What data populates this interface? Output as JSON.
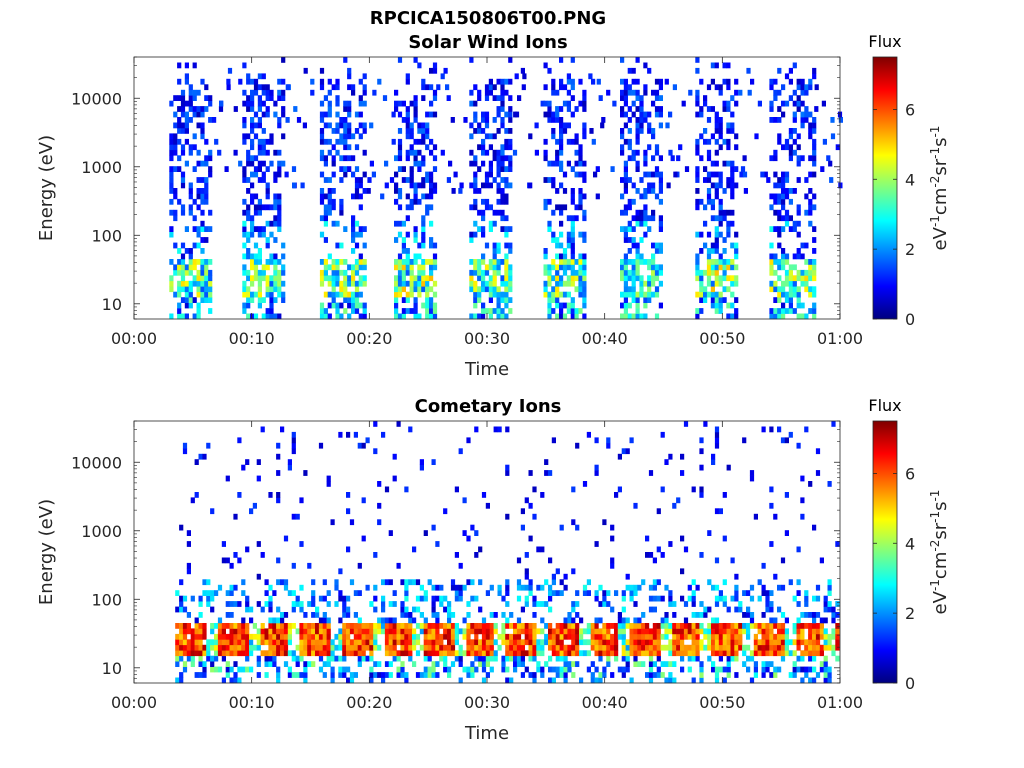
{
  "figure": {
    "title": "RPCICA150806T00.PNG"
  },
  "colorbar_colors": [
    "#00007f",
    "#0000ff",
    "#007fff",
    "#00ffff",
    "#7fff7f",
    "#ffff00",
    "#ff7f00",
    "#ff0000",
    "#7f0000"
  ],
  "chart_data": [
    {
      "type": "heatmap",
      "title": "Solar Wind Ions",
      "xlabel": "Time",
      "ylabel": "Energy (eV)",
      "x_ticks": [
        "00:00",
        "00:10",
        "00:20",
        "00:30",
        "00:40",
        "00:50",
        "01:00"
      ],
      "x_range_minutes": [
        0,
        60
      ],
      "y_scale": "log",
      "y_ticks": [
        "10",
        "100",
        "1000",
        "10000"
      ],
      "y_range_eV": [
        6,
        40000
      ],
      "colorbar": {
        "title": "Flux",
        "label": "eV-1cm-2sr-1s-1",
        "range": [
          0,
          7.5
        ],
        "ticks": [
          "0",
          "2",
          "4",
          "6"
        ]
      },
      "bursts": [
        {
          "start_min": 3.0,
          "end_min": 6.5,
          "peak_flux": 5.0
        },
        {
          "start_min": 9.2,
          "end_min": 12.6,
          "peak_flux": 4.8
        },
        {
          "start_min": 15.8,
          "end_min": 19.5,
          "peak_flux": 5.0
        },
        {
          "start_min": 22.1,
          "end_min": 25.6,
          "peak_flux": 5.2
        },
        {
          "start_min": 28.5,
          "end_min": 32.1,
          "peak_flux": 5.0
        },
        {
          "start_min": 34.8,
          "end_min": 38.3,
          "peak_flux": 5.0
        },
        {
          "start_min": 41.3,
          "end_min": 44.6,
          "peak_flux": 4.2
        },
        {
          "start_min": 47.7,
          "end_min": 51.3,
          "peak_flux": 5.2
        },
        {
          "start_min": 54.0,
          "end_min": 57.8,
          "peak_flux": 5.0
        }
      ]
    },
    {
      "type": "heatmap",
      "title": "Cometary Ions",
      "xlabel": "Time",
      "ylabel": "Energy (eV)",
      "x_ticks": [
        "00:00",
        "00:10",
        "00:20",
        "00:30",
        "00:40",
        "00:50",
        "01:00"
      ],
      "x_range_minutes": [
        0,
        60
      ],
      "y_scale": "log",
      "y_ticks": [
        "10",
        "100",
        "1000",
        "10000"
      ],
      "y_range_eV": [
        6,
        40000
      ],
      "colorbar": {
        "title": "Flux",
        "label": "eV-1cm-2sr-1s-1",
        "range": [
          0,
          7.5
        ],
        "ticks": [
          "0",
          "2",
          "4",
          "6"
        ]
      },
      "band_energy_eV": [
        20,
        40
      ],
      "band_start_min": 3.5,
      "band_peak_flux": 7.2
    }
  ]
}
